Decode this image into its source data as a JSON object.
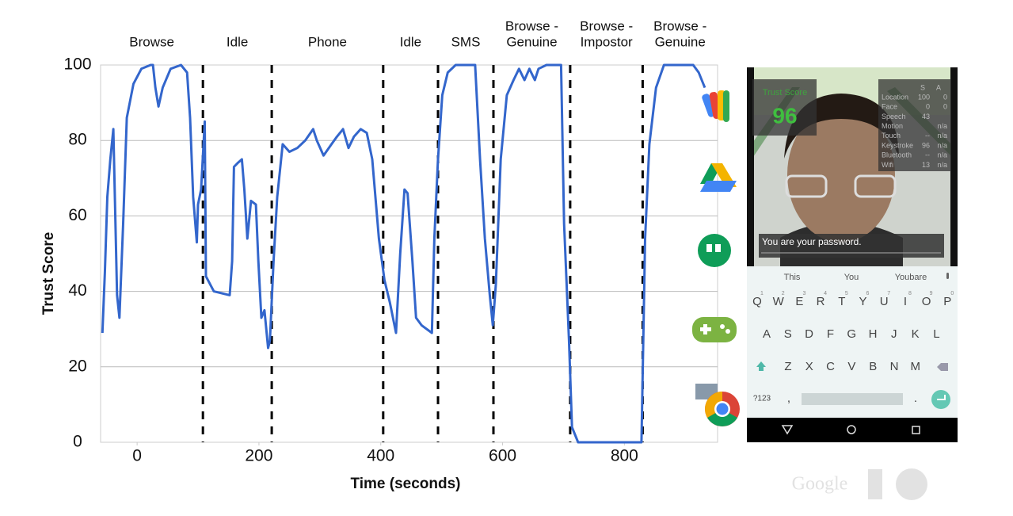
{
  "chart_data": {
    "type": "line",
    "xlabel": "Time (seconds)",
    "ylabel": "Trust Score",
    "xlim": [
      -60,
      953
    ],
    "ylim": [
      0,
      100
    ],
    "xticks": [
      0,
      200,
      400,
      600,
      800
    ],
    "yticks": [
      0,
      20,
      40,
      60,
      80,
      100
    ],
    "grid": true,
    "color": "#3366cc",
    "dividers": [
      108,
      221,
      404,
      494,
      585,
      711,
      830
    ],
    "phases": [
      {
        "lines": [
          "Browse"
        ]
      },
      {
        "lines": [
          "Idle"
        ]
      },
      {
        "lines": [
          "Phone"
        ]
      },
      {
        "lines": [
          "Idle"
        ]
      },
      {
        "lines": [
          "SMS"
        ]
      },
      {
        "lines": [
          "Browse -",
          "Genuine"
        ]
      },
      {
        "lines": [
          "Browse -",
          "Impostor"
        ]
      },
      {
        "lines": [
          "Browse -",
          "Genuine"
        ]
      }
    ],
    "x": [
      -57,
      -53,
      -49,
      -44,
      -39,
      -35,
      -33,
      -29,
      -23,
      -17,
      -6,
      7,
      22,
      26,
      30,
      35,
      42,
      55,
      72,
      82,
      87,
      92,
      98,
      100,
      105,
      111,
      113,
      126,
      152,
      156,
      159,
      165,
      172,
      176,
      181,
      187,
      195,
      199,
      204,
      209,
      215,
      218,
      224,
      230,
      239,
      250,
      263,
      276,
      289,
      295,
      306,
      319,
      328,
      338,
      347,
      356,
      367,
      377,
      386,
      397,
      406,
      415,
      425,
      432,
      439,
      444,
      452,
      458,
      467,
      484,
      488,
      494,
      501,
      510,
      523,
      555,
      563,
      571,
      579,
      584,
      589,
      597,
      607,
      618,
      627,
      636,
      644,
      653,
      659,
      672,
      696,
      701,
      709,
      714,
      724,
      764,
      828,
      834,
      841,
      852,
      865,
      913,
      922,
      932
    ],
    "values": [
      29,
      45,
      65,
      75,
      83,
      54,
      39,
      33,
      58,
      86,
      95,
      99,
      100,
      100,
      94,
      89,
      94,
      99,
      100,
      98,
      86,
      65,
      53,
      63,
      67,
      85,
      44,
      40,
      39,
      48,
      73,
      74,
      75,
      67,
      54,
      64,
      63,
      48,
      33,
      35,
      25,
      27,
      48,
      65,
      79,
      77,
      78,
      80,
      83,
      80,
      76,
      79,
      81,
      83,
      78,
      81,
      83,
      82,
      75,
      54,
      43,
      37,
      29,
      50,
      67,
      66,
      48,
      33,
      31,
      29,
      54,
      75,
      92,
      98,
      100,
      100,
      75,
      54,
      39,
      31,
      42,
      75,
      92,
      96,
      99,
      96,
      99,
      96,
      99,
      100,
      100,
      58,
      27,
      4,
      0,
      0,
      0,
      54,
      79,
      94,
      100,
      100,
      98,
      94
    ]
  },
  "phone": {
    "trust_title": "Trust Score",
    "trust_value": "96",
    "overlay_header": [
      "S",
      "A"
    ],
    "overlay_rows": [
      [
        "Location",
        "100",
        "0"
      ],
      [
        "Face",
        "0",
        "0"
      ],
      [
        "Speech",
        "43",
        ""
      ],
      [
        "Motion",
        "",
        "n/a"
      ],
      [
        "Touch",
        "--",
        "n/a"
      ],
      [
        "Keystroke",
        "96",
        "n/a"
      ],
      [
        "Bluetooth",
        "--",
        "n/a"
      ],
      [
        "Wifi",
        "13",
        "n/a"
      ]
    ],
    "input": "You are your password.",
    "suggestions": [
      "This",
      "You",
      "Youbare"
    ],
    "keys": [
      [
        "Q",
        "W",
        "E",
        "R",
        "T",
        "Y",
        "U",
        "I",
        "O",
        "P"
      ],
      [
        "A",
        "S",
        "D",
        "F",
        "G",
        "H",
        "J",
        "K",
        "L"
      ],
      [
        "Z",
        "X",
        "C",
        "V",
        "B",
        "N",
        "M"
      ]
    ],
    "hints": [
      "1",
      "2",
      "3",
      "4",
      "5",
      "6",
      "7",
      "8",
      "9",
      "0"
    ],
    "bottom_keys": [
      "?123",
      ",",
      "."
    ]
  },
  "logo": "Google"
}
